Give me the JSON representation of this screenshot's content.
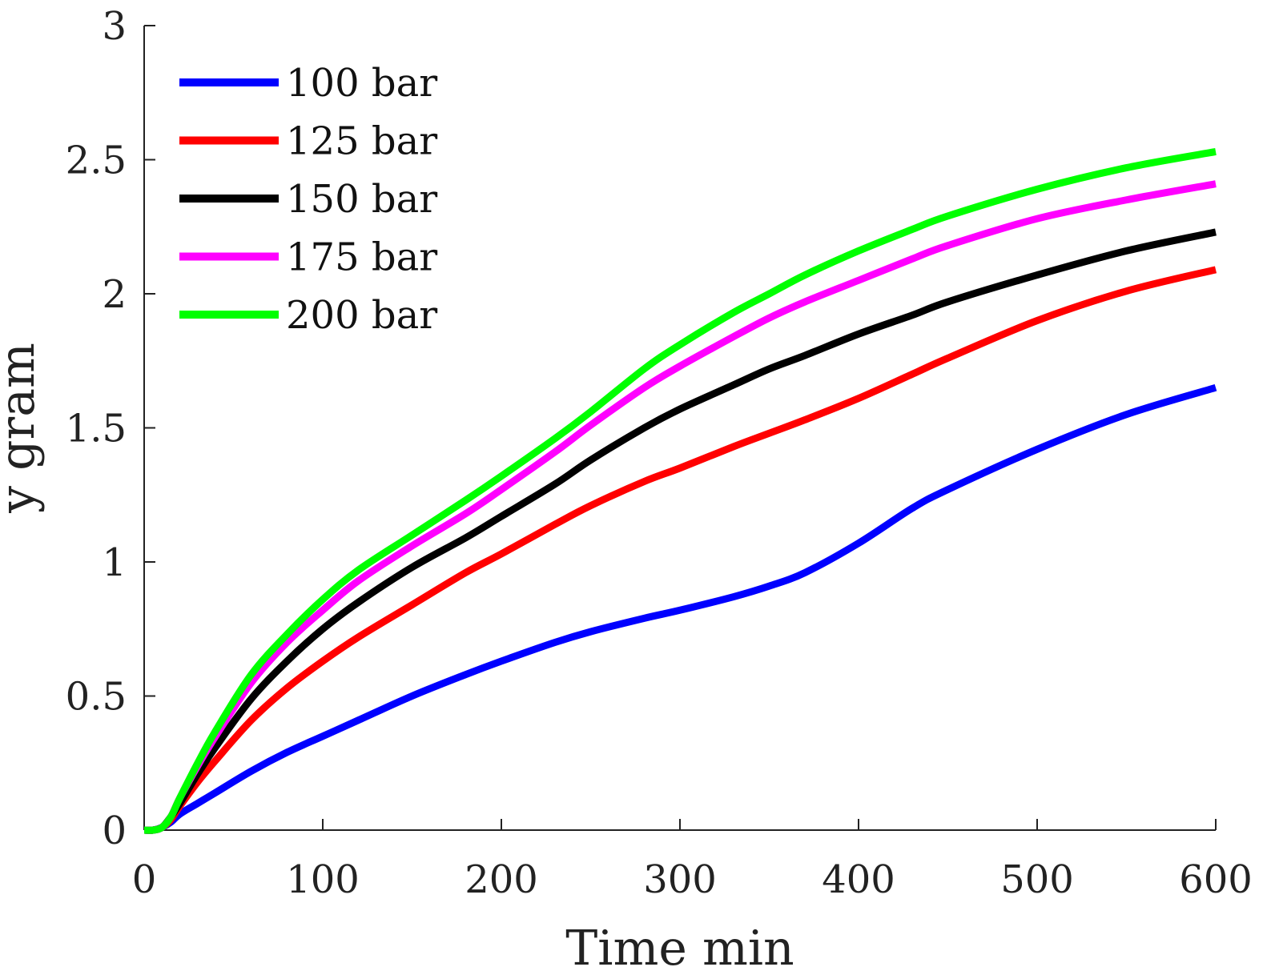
{
  "chart_data": {
    "type": "line",
    "title": "",
    "xlabel": "Time min",
    "ylabel": "y gram",
    "xlim": [
      0,
      600
    ],
    "ylim": [
      0,
      3
    ],
    "xticks": [
      0,
      100,
      200,
      300,
      400,
      500,
      600
    ],
    "yticks": [
      0,
      0.5,
      1,
      1.5,
      2,
      2.5,
      3
    ],
    "xtick_labels": [
      "0",
      "100",
      "200",
      "300",
      "400",
      "500",
      "600"
    ],
    "ytick_labels": [
      "0",
      "0.5",
      "1",
      "1.5",
      "2",
      "2.5",
      "3"
    ],
    "grid": false,
    "legend_position": "top-left",
    "x": [
      0,
      5,
      10,
      15,
      20,
      30,
      40,
      60,
      80,
      100,
      120,
      150,
      180,
      200,
      230,
      250,
      280,
      300,
      330,
      350,
      370,
      400,
      430,
      450,
      500,
      550,
      600
    ],
    "series": [
      {
        "name": "100 bar",
        "color": "#0000ff",
        "values": [
          0,
          0,
          0.01,
          0.03,
          0.06,
          0.1,
          0.14,
          0.22,
          0.29,
          0.35,
          0.41,
          0.5,
          0.58,
          0.63,
          0.7,
          0.74,
          0.79,
          0.82,
          0.87,
          0.91,
          0.96,
          1.07,
          1.2,
          1.27,
          1.42,
          1.55,
          1.65
        ]
      },
      {
        "name": "125 bar",
        "color": "#ff0000",
        "values": [
          0,
          0,
          0.01,
          0.04,
          0.09,
          0.18,
          0.26,
          0.41,
          0.53,
          0.63,
          0.72,
          0.84,
          0.96,
          1.03,
          1.14,
          1.21,
          1.3,
          1.35,
          1.43,
          1.48,
          1.53,
          1.61,
          1.7,
          1.76,
          1.9,
          2.01,
          2.09
        ]
      },
      {
        "name": "150 bar",
        "color": "#000000",
        "values": [
          0,
          0,
          0.01,
          0.05,
          0.1,
          0.21,
          0.31,
          0.49,
          0.63,
          0.75,
          0.85,
          0.98,
          1.09,
          1.17,
          1.29,
          1.38,
          1.5,
          1.57,
          1.66,
          1.72,
          1.77,
          1.85,
          1.92,
          1.97,
          2.07,
          2.16,
          2.23
        ]
      },
      {
        "name": "175 bar",
        "color": "#ff00ff",
        "values": [
          0,
          0,
          0.01,
          0.05,
          0.12,
          0.24,
          0.35,
          0.55,
          0.7,
          0.82,
          0.93,
          1.06,
          1.18,
          1.27,
          1.41,
          1.51,
          1.65,
          1.73,
          1.84,
          1.91,
          1.97,
          2.05,
          2.13,
          2.18,
          2.28,
          2.35,
          2.41
        ]
      },
      {
        "name": "200 bar",
        "color": "#00ff00",
        "values": [
          0,
          0,
          0.01,
          0.05,
          0.12,
          0.25,
          0.37,
          0.58,
          0.73,
          0.86,
          0.97,
          1.1,
          1.23,
          1.32,
          1.46,
          1.56,
          1.72,
          1.81,
          1.93,
          2.0,
          2.07,
          2.16,
          2.24,
          2.29,
          2.39,
          2.47,
          2.53
        ]
      }
    ]
  }
}
